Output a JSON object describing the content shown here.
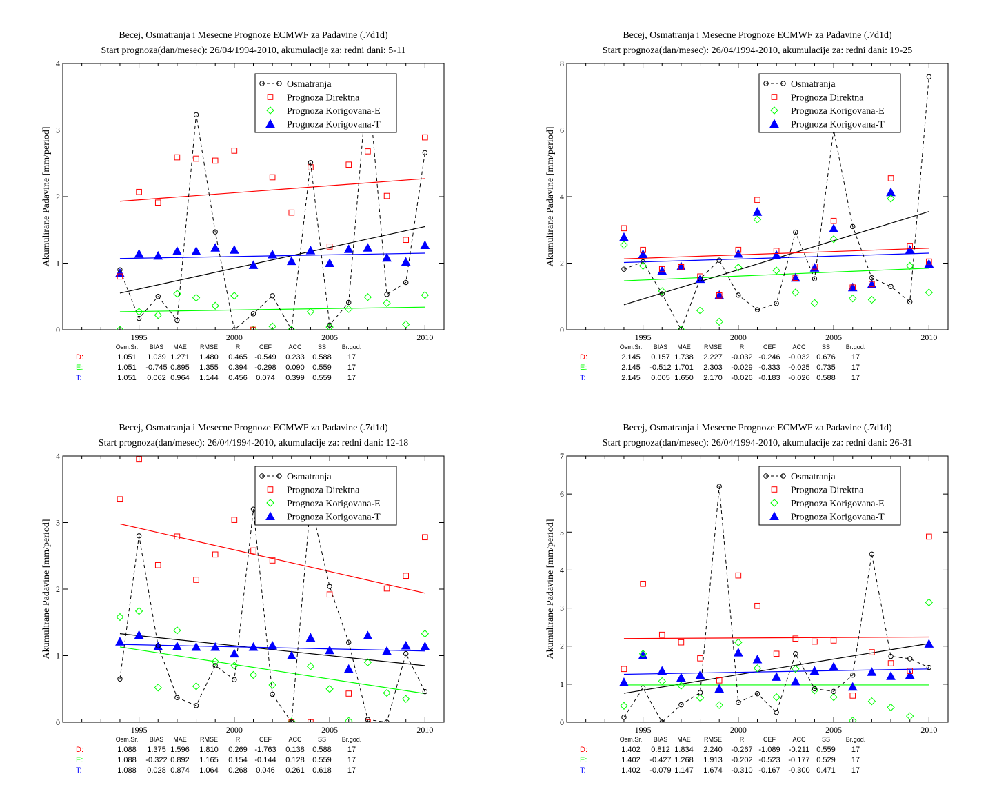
{
  "colors": {
    "obs": "#000000",
    "direct": "#ff0000",
    "corrE": "#00ff00",
    "corrT": "#0000ff"
  },
  "chart_data": [
    {
      "type": "scatter",
      "title": "Becej, Osmatranja i Mesecne Prognoze ECMWF za Padavine (.7d1d)",
      "subtitle": "Start prognoza(dan/mesec): 26/04/1994-2010, akumulacije za: redni dani: 5-11",
      "ylabel": "Akumulirane Padavine [mm/period]",
      "xlabel": "",
      "xlim": [
        1991,
        2011
      ],
      "ylim": [
        0,
        4
      ],
      "xticks": [
        1995,
        2000,
        2005,
        2010
      ],
      "yticks": [
        0,
        1,
        2,
        3,
        4
      ],
      "legend": [
        "Osmatranja",
        "Prognoza Direktna",
        "Prognoza Korigovana-E",
        "Prognoza Korigovana-T"
      ],
      "legend_position": "top-right",
      "x": [
        1994,
        1995,
        1996,
        1997,
        1998,
        1999,
        2000,
        2001,
        2002,
        2003,
        2004,
        2005,
        2006,
        2007,
        2008,
        2009,
        2010
      ],
      "series": [
        {
          "name": "Osmatranja",
          "values": [
            0.9,
            0.17,
            0.5,
            0.14,
            3.23,
            1.47,
            0.0,
            0.24,
            0.51,
            0.0,
            2.51,
            0.07,
            0.41,
            3.8,
            0.53,
            0.71,
            2.66
          ]
        },
        {
          "name": "Prognoza Direktna",
          "values": [
            0.8,
            2.07,
            1.91,
            2.59,
            2.57,
            2.54,
            2.69,
            0.0,
            2.29,
            1.76,
            2.44,
            1.25,
            2.48,
            2.68,
            2.01,
            1.35,
            2.89
          ]
        },
        {
          "name": "Prognoza Korigovana-E",
          "values": [
            0.0,
            0.27,
            0.22,
            0.54,
            0.48,
            0.36,
            0.51,
            0.0,
            0.05,
            0.0,
            0.27,
            0.04,
            0.31,
            0.49,
            0.4,
            0.08,
            0.52
          ]
        },
        {
          "name": "Prognoza Korigovana-T",
          "values": [
            0.85,
            1.14,
            1.11,
            1.18,
            1.18,
            1.23,
            1.2,
            0.97,
            1.13,
            1.03,
            1.19,
            1.0,
            1.21,
            1.23,
            1.08,
            1.02,
            1.27
          ]
        }
      ],
      "trend_lines": {
        "obs": [
          0.55,
          1.55
        ],
        "direct": [
          1.93,
          2.27
        ],
        "corrE": [
          0.27,
          0.34
        ],
        "corrT": [
          1.07,
          1.15
        ]
      },
      "stats": {
        "headers": [
          "Osm.Sr.",
          "BIAS",
          "MAE",
          "RMSE",
          "R",
          "CEF",
          "ACC",
          "SS",
          "Br.god."
        ],
        "rows": [
          {
            "label": "D:",
            "values": [
              "1.051",
              "1.039",
              "1.271",
              "1.480",
              "0.465",
              "-0.549",
              "0.233",
              "0.588",
              "17"
            ]
          },
          {
            "label": "E:",
            "values": [
              "1.051",
              "-0.745",
              "0.895",
              "1.355",
              "0.394",
              "-0.298",
              "0.090",
              "0.559",
              "17"
            ]
          },
          {
            "label": "T:",
            "values": [
              "1.051",
              "0.062",
              "0.964",
              "1.144",
              "0.456",
              "0.074",
              "0.399",
              "0.559",
              "17"
            ]
          }
        ]
      }
    },
    {
      "type": "scatter",
      "title": "Becej, Osmatranja i Mesecne Prognoze ECMWF za Padavine (.7d1d)",
      "subtitle": "Start prognoza(dan/mesec): 26/04/1994-2010, akumulacije za: redni dani: 19-25",
      "ylabel": "Akumulirane Padavine [mm/period]",
      "xlabel": "",
      "xlim": [
        1991,
        2011
      ],
      "ylim": [
        0,
        8
      ],
      "xticks": [
        1995,
        2000,
        2005,
        2010
      ],
      "yticks": [
        0,
        2,
        4,
        6,
        8
      ],
      "legend": [
        "Osmatranja",
        "Prognoza Direktna",
        "Prognoza Korigovana-E",
        "Prognoza Korigovana-T"
      ],
      "legend_position": "top-right",
      "x": [
        1994,
        1995,
        1996,
        1997,
        1998,
        1999,
        2000,
        2001,
        2002,
        2003,
        2004,
        2005,
        2006,
        2007,
        2008,
        2009,
        2010
      ],
      "series": [
        {
          "name": "Osmatranja",
          "values": [
            1.82,
            2.04,
            1.08,
            0.0,
            1.53,
            2.09,
            1.04,
            0.6,
            0.79,
            2.93,
            1.53,
            6.0,
            3.1,
            1.56,
            1.3,
            0.84,
            7.6
          ]
        },
        {
          "name": "Prognoza Direktna",
          "values": [
            3.05,
            2.4,
            1.82,
            1.88,
            1.6,
            1.03,
            2.4,
            3.9,
            2.37,
            1.56,
            1.9,
            3.27,
            1.27,
            1.37,
            4.55,
            2.52,
            2.05
          ]
        },
        {
          "name": "Prognoza Korigovana-E",
          "values": [
            2.55,
            1.92,
            1.16,
            0.0,
            0.58,
            0.24,
            1.87,
            3.31,
            1.78,
            1.12,
            0.8,
            2.72,
            0.94,
            0.9,
            3.94,
            1.92,
            1.12
          ]
        },
        {
          "name": "Prognoza Korigovana-T",
          "values": [
            2.78,
            2.27,
            1.77,
            1.9,
            1.52,
            1.04,
            2.28,
            3.54,
            2.24,
            1.56,
            1.86,
            3.04,
            1.27,
            1.36,
            4.13,
            2.4,
            1.98
          ]
        }
      ],
      "trend_lines": {
        "obs": [
          0.75,
          3.55
        ],
        "direct": [
          2.13,
          2.45
        ],
        "corrE": [
          1.47,
          1.85
        ],
        "corrT": [
          2.02,
          2.3
        ]
      },
      "stats": {
        "headers": [
          "Osm.Sr.",
          "BIAS",
          "MAE",
          "RMSE",
          "R",
          "CEF",
          "ACC",
          "SS",
          "Br.god."
        ],
        "rows": [
          {
            "label": "D:",
            "values": [
              "2.145",
              "0.157",
              "1.738",
              "2.227",
              "-0.032",
              "-0.246",
              "-0.032",
              "0.676",
              "17"
            ]
          },
          {
            "label": "E:",
            "values": [
              "2.145",
              "-0.512",
              "1.701",
              "2.303",
              "-0.029",
              "-0.333",
              "-0.025",
              "0.735",
              "17"
            ]
          },
          {
            "label": "T:",
            "values": [
              "2.145",
              "0.005",
              "1.650",
              "2.170",
              "-0.026",
              "-0.183",
              "-0.026",
              "0.588",
              "17"
            ]
          }
        ]
      }
    },
    {
      "type": "scatter",
      "title": "Becej, Osmatranja i Mesecne Prognoze ECMWF za Padavine (.7d1d)",
      "subtitle": "Start prognoza(dan/mesec): 26/04/1994-2010, akumulacije za: redni dani: 12-18",
      "ylabel": "Akumulirane Padavine [mm/period]",
      "xlabel": "",
      "xlim": [
        1991,
        2011
      ],
      "ylim": [
        0,
        4
      ],
      "xticks": [
        1995,
        2000,
        2005,
        2010
      ],
      "yticks": [
        0,
        1,
        2,
        3,
        4
      ],
      "legend": [
        "Osmatranja",
        "Prognoza Direktna",
        "Prognoza Korigovana-E",
        "Prognoza Korigovana-T"
      ],
      "legend_position": "top-right",
      "x": [
        1994,
        1995,
        1996,
        1997,
        1998,
        1999,
        2000,
        2001,
        2002,
        2003,
        2004,
        2005,
        2006,
        2007,
        2008,
        2009,
        2010
      ],
      "series": [
        {
          "name": "Osmatranja",
          "values": [
            0.65,
            2.8,
            1.15,
            0.37,
            0.25,
            0.85,
            0.64,
            3.2,
            0.42,
            0.0,
            3.3,
            2.04,
            1.2,
            0.04,
            0.0,
            1.03,
            0.46
          ]
        },
        {
          "name": "Prognoza Direktna",
          "values": [
            3.35,
            3.95,
            2.36,
            2.79,
            2.14,
            2.52,
            3.04,
            2.58,
            2.43,
            0.0,
            0.0,
            1.92,
            0.43,
            0.0,
            2.01,
            2.2,
            2.78
          ]
        },
        {
          "name": "Prognoza Korigovana-E",
          "values": [
            1.58,
            1.67,
            0.52,
            1.38,
            0.54,
            0.91,
            0.85,
            0.71,
            0.56,
            0.01,
            0.84,
            0.5,
            0.02,
            0.9,
            0.44,
            0.35,
            1.33
          ]
        },
        {
          "name": "Prognoza Korigovana-T",
          "values": [
            1.21,
            1.31,
            1.14,
            1.14,
            1.13,
            1.13,
            1.03,
            1.13,
            1.15,
            1.0,
            1.27,
            1.08,
            0.8,
            1.3,
            1.07,
            1.15,
            1.14
          ]
        }
      ],
      "trend_lines": {
        "obs": [
          1.33,
          0.85
        ],
        "direct": [
          2.98,
          1.94
        ],
        "corrE": [
          1.13,
          0.43
        ],
        "corrT": [
          1.17,
          1.07
        ]
      },
      "stats": {
        "headers": [
          "Osm.Sr.",
          "BIAS",
          "MAE",
          "RMSE",
          "R",
          "CEF",
          "ACC",
          "SS",
          "Br.god."
        ],
        "rows": [
          {
            "label": "D:",
            "values": [
              "1.088",
              "1.375",
              "1.596",
              "1.810",
              "0.269",
              "-1.763",
              "0.138",
              "0.588",
              "17"
            ]
          },
          {
            "label": "E:",
            "values": [
              "1.088",
              "-0.322",
              "0.892",
              "1.165",
              "0.154",
              "-0.144",
              "0.128",
              "0.559",
              "17"
            ]
          },
          {
            "label": "T:",
            "values": [
              "1.088",
              "0.028",
              "0.874",
              "1.064",
              "0.268",
              "0.046",
              "0.261",
              "0.618",
              "17"
            ]
          }
        ]
      }
    },
    {
      "type": "scatter",
      "title": "Becej, Osmatranja i Mesecne Prognoze ECMWF za Padavine (.7d1d)",
      "subtitle": "Start prognoza(dan/mesec): 26/04/1994-2010, akumulacije za: redni dani: 26-31",
      "ylabel": "Akumulirane Padavine [mm/period]",
      "xlabel": "",
      "xlim": [
        1991,
        2011
      ],
      "ylim": [
        0,
        7
      ],
      "xticks": [
        1995,
        2000,
        2005,
        2010
      ],
      "yticks": [
        0,
        1,
        2,
        3,
        4,
        5,
        6,
        7
      ],
      "legend": [
        "Osmatranja",
        "Prognoza Direktna",
        "Prognoza Korigovana-E",
        "Prognoza Korigovana-T"
      ],
      "legend_position": "top-right",
      "x": [
        1994,
        1995,
        1996,
        1997,
        1998,
        1999,
        2000,
        2001,
        2002,
        2003,
        2004,
        2005,
        2006,
        2007,
        2008,
        2009,
        2010
      ],
      "series": [
        {
          "name": "Osmatranja",
          "values": [
            0.13,
            0.9,
            0.0,
            0.46,
            0.78,
            6.2,
            0.52,
            0.75,
            0.26,
            1.8,
            0.88,
            0.81,
            1.24,
            4.42,
            1.73,
            1.67,
            1.44
          ]
        },
        {
          "name": "Prognoza Direktna",
          "values": [
            1.4,
            3.64,
            2.3,
            2.1,
            1.68,
            1.1,
            3.86,
            3.06,
            1.8,
            2.2,
            2.12,
            2.15,
            0.7,
            1.84,
            1.55,
            1.35,
            4.88
          ]
        },
        {
          "name": "Prognoza Korigovana-E",
          "values": [
            0.43,
            1.8,
            1.08,
            0.96,
            0.64,
            0.45,
            2.1,
            1.42,
            0.66,
            1.4,
            0.84,
            0.66,
            0.04,
            0.55,
            0.39,
            0.16,
            3.15
          ]
        },
        {
          "name": "Prognoza Korigovana-T",
          "values": [
            1.05,
            1.76,
            1.35,
            1.17,
            1.24,
            0.88,
            1.83,
            1.65,
            1.19,
            1.07,
            1.35,
            1.46,
            0.93,
            1.32,
            1.21,
            1.24,
            2.06
          ]
        }
      ],
      "trend_lines": {
        "obs": [
          0.76,
          2.07
        ],
        "direct": [
          2.2,
          2.24
        ],
        "corrE": [
          0.98,
          0.98
        ],
        "corrT": [
          1.26,
          1.4
        ]
      },
      "stats": {
        "headers": [
          "Osm.Sr.",
          "BIAS",
          "MAE",
          "RMSE",
          "R",
          "CEF",
          "ACC",
          "SS",
          "Br.god."
        ],
        "rows": [
          {
            "label": "D:",
            "values": [
              "1.402",
              "0.812",
              "1.834",
              "2.240",
              "-0.267",
              "-1.089",
              "-0.211",
              "0.559",
              "17"
            ]
          },
          {
            "label": "E:",
            "values": [
              "1.402",
              "-0.427",
              "1.268",
              "1.913",
              "-0.202",
              "-0.523",
              "-0.177",
              "0.529",
              "17"
            ]
          },
          {
            "label": "T:",
            "values": [
              "1.402",
              "-0.079",
              "1.147",
              "1.674",
              "-0.310",
              "-0.167",
              "-0.300",
              "0.471",
              "17"
            ]
          }
        ]
      }
    }
  ]
}
